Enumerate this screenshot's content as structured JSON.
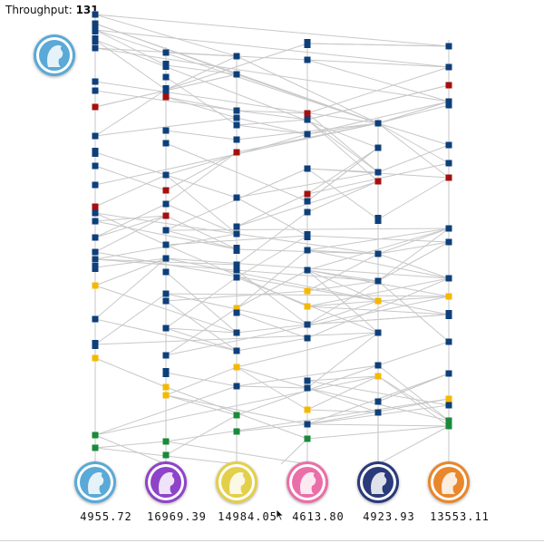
{
  "header": {
    "throughput_label": "Throughput:",
    "throughput_value": "131"
  },
  "source_badge": {
    "icon": "pony-head-icon",
    "color": "#5aa9d6"
  },
  "lanes": [
    {
      "icon": "pony-head-icon",
      "color": "#5aa9d6",
      "value": "4955.72"
    },
    {
      "icon": "pony-head-icon",
      "color": "#8e44c8",
      "value": "16969.39"
    },
    {
      "icon": "pony-head-icon",
      "color": "#e3cf4a",
      "value": "14984.05"
    },
    {
      "icon": "pony-head-icon",
      "color": "#ea6fa8",
      "value": "4613.80"
    },
    {
      "icon": "pony-head-icon",
      "color": "#2a3a7a",
      "value": "4923.93"
    },
    {
      "icon": "pony-head-icon",
      "color": "#e8872b",
      "value": "13553.11"
    }
  ],
  "colors": {
    "blue": "#0d3f7a",
    "red": "#a50f0f",
    "yellow": "#f5b800",
    "green": "#1a8a3a",
    "edge": "#c8c8c8",
    "lane": "#d0d0d0"
  }
}
